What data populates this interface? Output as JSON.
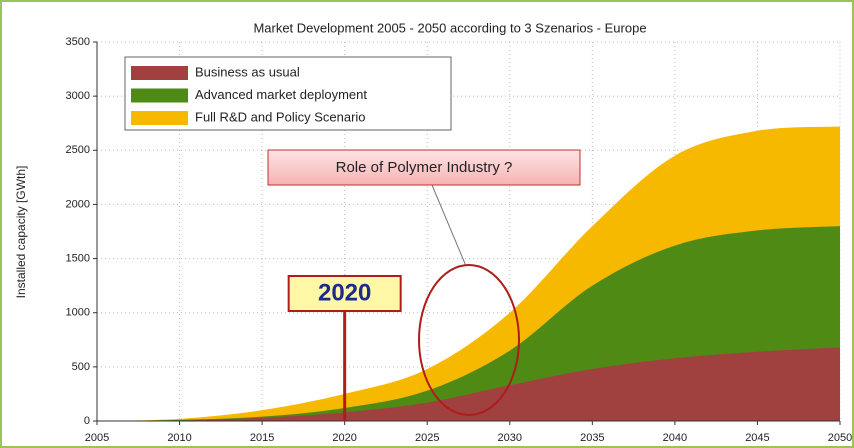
{
  "chart_data": {
    "type": "area",
    "title": "Market Development 2005 - 2050 according to 3 Szenarios - Europe",
    "y_label": "Installed capacity [GWth]",
    "x": [
      2005,
      2010,
      2015,
      2020,
      2025,
      2030,
      2035,
      2040,
      2045,
      2050
    ],
    "series": [
      {
        "name": "Business as usual",
        "color": "#a0413f",
        "values": [
          0,
          5,
          30,
          80,
          170,
          330,
          480,
          580,
          640,
          680
        ]
      },
      {
        "name": "Advanced market deployment",
        "color": "#4e8a14",
        "values": [
          0,
          10,
          40,
          120,
          280,
          650,
          1250,
          1620,
          1760,
          1800
        ]
      },
      {
        "name": "Full R&D and Policy Scenario",
        "color": "#f7b800",
        "values": [
          0,
          20,
          100,
          250,
          480,
          1000,
          1800,
          2450,
          2680,
          2720
        ]
      }
    ],
    "xlim": [
      2005,
      2050
    ],
    "xticks": [
      2005,
      2010,
      2015,
      2020,
      2025,
      2030,
      2035,
      2040,
      2045,
      2050
    ],
    "ylim": [
      0,
      3500
    ],
    "yticks": [
      0,
      500,
      1000,
      1500,
      2000,
      2500,
      3000,
      3500
    ],
    "grid": true,
    "legend": "top-left",
    "marker": {
      "x": 2020
    },
    "callout": "Role of Polymer Industry ?"
  }
}
